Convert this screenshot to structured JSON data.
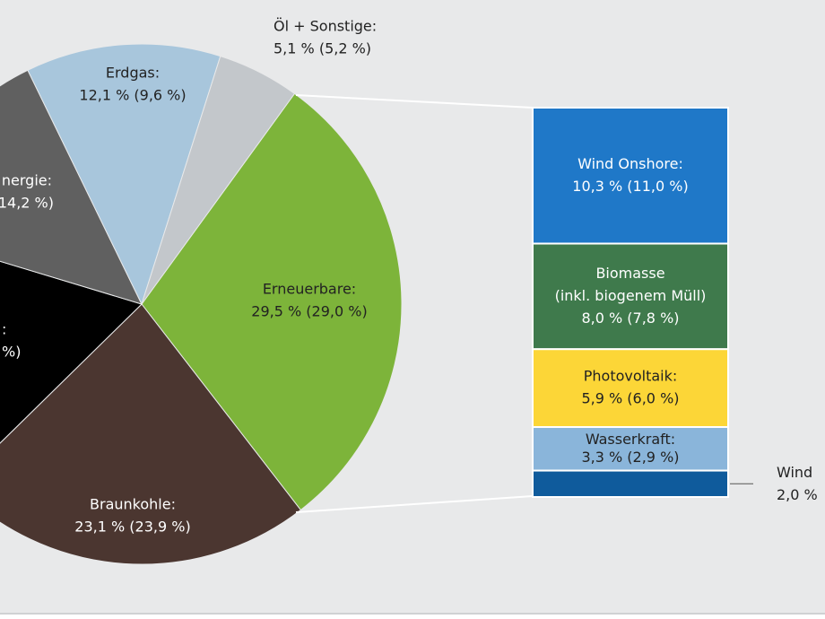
{
  "chart_data": [
    {
      "type": "pie",
      "values": [
        29.5,
        23.1,
        17.0,
        13.1,
        12.1,
        5.1
      ],
      "colors": [
        "#7db43a",
        "#4b3630",
        "#000000",
        "#606060",
        "#a8c6dc",
        "#c3c7cb"
      ],
      "label_lines": [
        [
          "Erneuerbare:",
          "29,5 % (29,0 %)"
        ],
        [
          "Braunkohle:",
          "23,1 % (23,9 %)"
        ],
        [
          ":",
          "%)"
        ],
        [
          "nergie:",
          "14,2 %)"
        ],
        [
          "Erdgas:",
          "12,1 % (9,6 %)"
        ],
        [
          "Öl + Sonstige:",
          "5,1 % (5,2 %)"
        ]
      ]
    },
    {
      "type": "stacked_bar",
      "values": [
        10.3,
        8.0,
        5.9,
        3.3,
        2.0
      ],
      "colors": [
        "#1f78c8",
        "#3f7a4c",
        "#fcd637",
        "#8ab5da",
        "#0f5b9c"
      ],
      "label_lines": [
        [
          "Wind Onshore:",
          "10,3 % (11,0 %)"
        ],
        [
          "Biomasse",
          "(inkl. biogenem Müll)",
          "8,0 % (7,8 %)"
        ],
        [
          "Photovoltaik:",
          "5,9 % (6,0 %)"
        ],
        [
          "Wasserkraft:",
          "3,3 % (2,9 %)"
        ],
        [
          "Wind",
          "2,0 %"
        ]
      ]
    }
  ]
}
